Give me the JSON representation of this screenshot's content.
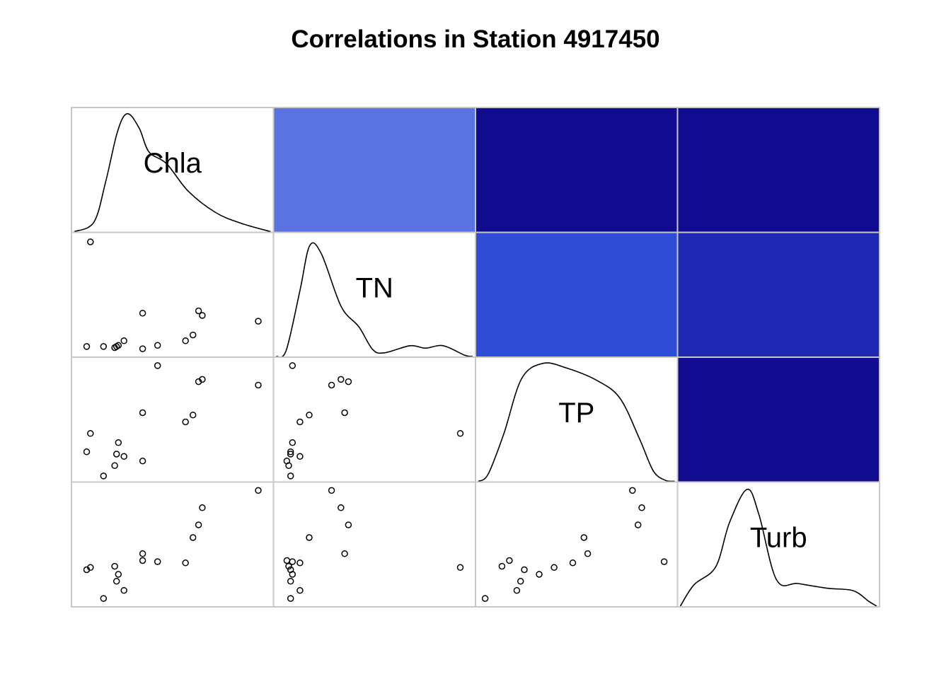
{
  "chart_data": {
    "type": "scatter",
    "title": "Correlations in Station 4917450",
    "variables": [
      "Chla",
      "TN",
      "TP",
      "Turb"
    ],
    "colors": {
      "strong_positive": "#110C8F",
      "Chla_TN": "#5A73E0",
      "TN_TP": "#2E4CD6",
      "TN_Turb": "#1E28B3",
      "curve": "#000000",
      "grid_border": "#c8c8c8"
    },
    "upper_cells": [
      {
        "row": 0,
        "col": 1,
        "pair": "Chla-TN",
        "color": "#5A73E0"
      },
      {
        "row": 0,
        "col": 2,
        "pair": "Chla-TP",
        "color": "#110C8F"
      },
      {
        "row": 0,
        "col": 3,
        "pair": "Chla-Turb",
        "color": "#110C8F"
      },
      {
        "row": 1,
        "col": 2,
        "pair": "TN-TP",
        "color": "#2E4CD6"
      },
      {
        "row": 1,
        "col": 3,
        "pair": "TN-Turb",
        "color": "#1E28B3"
      },
      {
        "row": 2,
        "col": 3,
        "pair": "TP-Turb",
        "color": "#110C8F"
      }
    ],
    "observations": {
      "Chla": [
        0.04,
        0.06,
        0.13,
        0.19,
        0.2,
        0.24,
        0.21,
        0.34,
        0.34,
        0.42,
        0.57,
        0.61,
        0.64,
        0.66,
        0.96
      ],
      "TN": [
        0.05,
        0.96,
        0.05,
        0.04,
        0.05,
        0.1,
        0.06,
        0.03,
        0.34,
        0.06,
        0.1,
        0.15,
        0.36,
        0.32,
        0.27
      ],
      "TP": [
        0.22,
        0.38,
        0.01,
        0.1,
        0.2,
        0.18,
        0.3,
        0.14,
        0.56,
        0.97,
        0.48,
        0.54,
        0.83,
        0.85,
        0.8
      ],
      "Turb": [
        0.28,
        0.3,
        0.03,
        0.31,
        0.18,
        0.1,
        0.24,
        0.36,
        0.42,
        0.35,
        0.34,
        0.56,
        0.67,
        0.82,
        0.97
      ]
    },
    "densities": {
      "Chla": [
        [
          0.0,
          0.0
        ],
        [
          0.1,
          0.08
        ],
        [
          0.16,
          0.42
        ],
        [
          0.22,
          0.84
        ],
        [
          0.27,
          0.99
        ],
        [
          0.33,
          0.87
        ],
        [
          0.38,
          0.67
        ],
        [
          0.47,
          0.57
        ],
        [
          0.58,
          0.34
        ],
        [
          0.72,
          0.16
        ],
        [
          0.85,
          0.07
        ],
        [
          1.0,
          0.0
        ]
      ],
      "TN": [
        [
          0.0,
          0.0
        ],
        [
          0.05,
          0.05
        ],
        [
          0.12,
          0.55
        ],
        [
          0.17,
          0.93
        ],
        [
          0.23,
          0.86
        ],
        [
          0.33,
          0.42
        ],
        [
          0.42,
          0.25
        ],
        [
          0.49,
          0.06
        ],
        [
          0.55,
          0.03
        ],
        [
          0.68,
          0.09
        ],
        [
          0.76,
          0.07
        ],
        [
          0.85,
          0.09
        ],
        [
          0.96,
          0.01
        ],
        [
          1.0,
          0.0
        ]
      ],
      "TP": [
        [
          0.0,
          0.0
        ],
        [
          0.05,
          0.06
        ],
        [
          0.13,
          0.4
        ],
        [
          0.22,
          0.86
        ],
        [
          0.33,
          0.99
        ],
        [
          0.45,
          0.95
        ],
        [
          0.6,
          0.85
        ],
        [
          0.72,
          0.7
        ],
        [
          0.82,
          0.36
        ],
        [
          0.89,
          0.09
        ],
        [
          0.95,
          0.01
        ],
        [
          1.0,
          0.0
        ]
      ],
      "Turb": [
        [
          0.0,
          0.0
        ],
        [
          0.07,
          0.18
        ],
        [
          0.18,
          0.33
        ],
        [
          0.25,
          0.7
        ],
        [
          0.34,
          0.98
        ],
        [
          0.4,
          0.77
        ],
        [
          0.49,
          0.22
        ],
        [
          0.6,
          0.19
        ],
        [
          0.75,
          0.15
        ],
        [
          0.88,
          0.13
        ],
        [
          0.96,
          0.04
        ],
        [
          1.0,
          0.0
        ]
      ]
    }
  }
}
